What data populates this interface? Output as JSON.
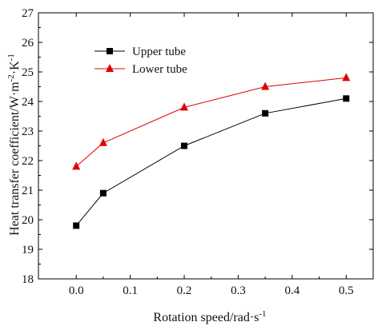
{
  "chart_data": {
    "type": "line",
    "xlabel": "Rotation speed/rad·s",
    "xlabel_sup": "-1",
    "ylabel_parts": [
      "Heat transfer coefficient/W·m",
      "-2",
      "·K",
      "-1"
    ],
    "xlim": [
      -0.07,
      0.55
    ],
    "ylim": [
      18,
      27
    ],
    "x_ticks": [
      0.0,
      0.1,
      0.2,
      0.3,
      0.4,
      0.5
    ],
    "x_tick_labels": [
      "0.0",
      "0.1",
      "0.2",
      "0.3",
      "0.4",
      "0.5"
    ],
    "y_ticks": [
      18,
      19,
      20,
      21,
      22,
      23,
      24,
      25,
      26,
      27
    ],
    "y_tick_labels": [
      "18",
      "19",
      "20",
      "21",
      "22",
      "23",
      "24",
      "25",
      "26",
      "27"
    ],
    "legend_position": "top-left",
    "grid": false,
    "series": [
      {
        "name": "Upper tube",
        "color": "#000000",
        "marker": "square",
        "x": [
          0.0,
          0.05,
          0.2,
          0.35,
          0.5
        ],
        "y": [
          19.8,
          20.9,
          22.5,
          23.6,
          24.1
        ]
      },
      {
        "name": "Lower tube",
        "color": "#e00000",
        "marker": "triangle",
        "x": [
          0.0,
          0.05,
          0.2,
          0.35,
          0.5
        ],
        "y": [
          21.8,
          22.6,
          23.8,
          24.5,
          24.8
        ]
      }
    ]
  }
}
